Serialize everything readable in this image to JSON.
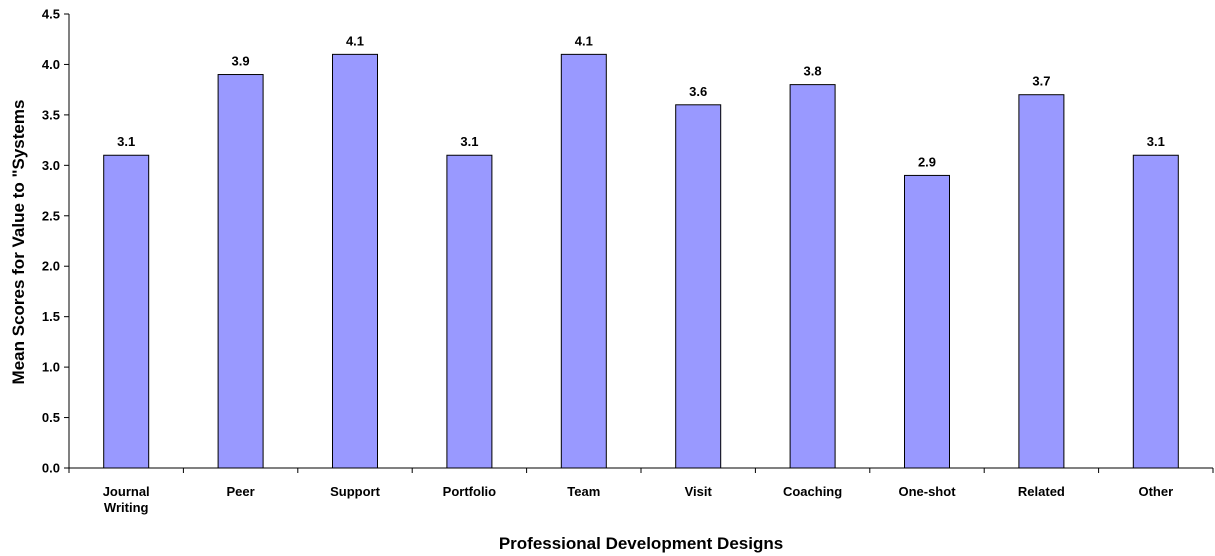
{
  "chart_data": {
    "type": "bar",
    "title": "",
    "xlabel": "Professional Development Designs",
    "ylabel": "Mean Scores for Value to \"Systems",
    "categories": [
      [
        "Journal",
        "Writing"
      ],
      [
        "Peer"
      ],
      [
        "Support"
      ],
      [
        "Portfolio"
      ],
      [
        "Team"
      ],
      [
        "Visit"
      ],
      [
        "Coaching"
      ],
      [
        "One-shot"
      ],
      [
        "Related"
      ],
      [
        "Other"
      ]
    ],
    "values": [
      3.1,
      3.9,
      4.1,
      3.1,
      4.1,
      3.6,
      3.8,
      2.9,
      3.7,
      3.1
    ],
    "data_labels": [
      "3.1",
      "3.9",
      "4.1",
      "3.1",
      "4.1",
      "3.6",
      "3.8",
      "2.9",
      "3.7",
      "3.1"
    ],
    "ylim": [
      0,
      4.5
    ],
    "yticks": [
      "0.0",
      "0.5",
      "1.0",
      "1.5",
      "2.0",
      "2.5",
      "3.0",
      "3.5",
      "4.0",
      "4.5"
    ],
    "grid": false,
    "legend": "none",
    "colors": {
      "bar_fill": "#9999ff",
      "bar_stroke": "#000000",
      "axis": "#000000"
    }
  }
}
